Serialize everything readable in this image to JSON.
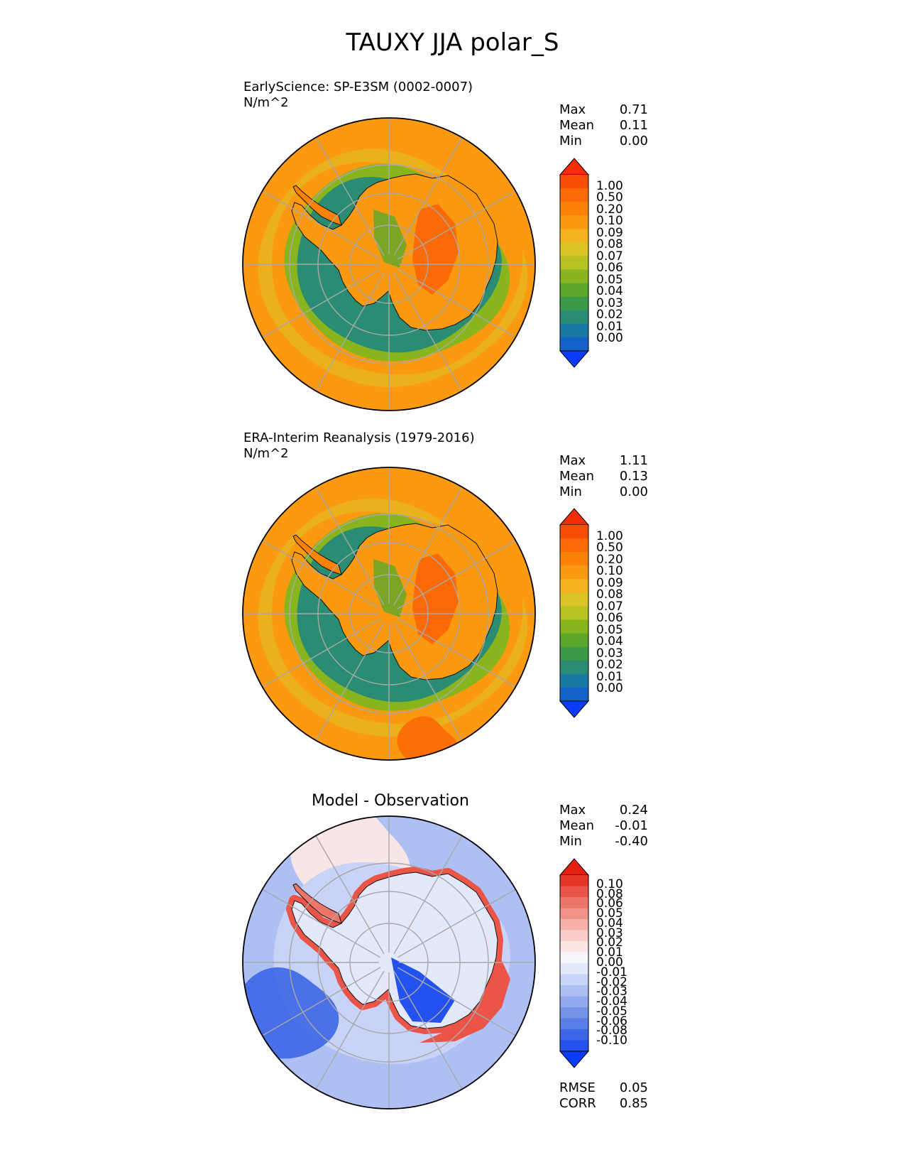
{
  "figure": {
    "title": "TAUXY JJA polar_S"
  },
  "palettes": {
    "field": [
      "#0a3cff",
      "#1562c8",
      "#1a78a6",
      "#2a8c72",
      "#3b9a4a",
      "#5aa72a",
      "#88b51e",
      "#b5c222",
      "#ddc426",
      "#f5b320",
      "#fb9a10",
      "#fc8206",
      "#fb6a04",
      "#f94c04",
      "#f62d06"
    ],
    "diff": [
      "#0a3cff",
      "#2352f0",
      "#3d66e6",
      "#5a7de6",
      "#7693ea",
      "#92a9ee",
      "#adbff3",
      "#c8d3f7",
      "#e3e9fb",
      "#f6f7fb",
      "#fce7e5",
      "#f9cdc8",
      "#f6b1a9",
      "#f29389",
      "#ee7569",
      "#ea5548",
      "#e53526",
      "#e61f10"
    ]
  },
  "panels": [
    {
      "id": "model",
      "label": "EarlyScience: SP-E3SM (0002-0007)",
      "units": "N/m^2",
      "stats": [
        {
          "name": "Max",
          "value": "0.71"
        },
        {
          "name": "Mean",
          "value": "0.11"
        },
        {
          "name": "Min",
          "value": "0.00"
        }
      ]
    },
    {
      "id": "obs",
      "label": "ERA-Interim Reanalysis (1979-2016)",
      "units": "N/m^2",
      "stats": [
        {
          "name": "Max",
          "value": "1.11"
        },
        {
          "name": "Mean",
          "value": "0.13"
        },
        {
          "name": "Min",
          "value": "0.00"
        }
      ]
    },
    {
      "id": "diff",
      "title": "Model - Observation",
      "stats": [
        {
          "name": "Max",
          "value": "0.24"
        },
        {
          "name": "Mean",
          "value": "-0.01"
        },
        {
          "name": "Min",
          "value": "-0.40"
        }
      ],
      "metrics": [
        {
          "name": "RMSE",
          "value": "0.05"
        },
        {
          "name": "CORR",
          "value": "0.85"
        }
      ]
    }
  ],
  "chart_data": [
    {
      "type": "heatmap",
      "projection": "south polar stereographic",
      "field": "TAUXY",
      "season": "JJA",
      "panel": "model",
      "colorbar": {
        "extend": "both",
        "levels": [
          "1.00",
          "0.50",
          "0.20",
          "0.10",
          "0.09",
          "0.08",
          "0.07",
          "0.06",
          "0.05",
          "0.04",
          "0.03",
          "0.02",
          "0.01",
          "0.00"
        ]
      },
      "stats": {
        "max": 0.71,
        "mean": 0.11,
        "min": 0.0
      }
    },
    {
      "type": "heatmap",
      "projection": "south polar stereographic",
      "field": "TAUXY",
      "season": "JJA",
      "panel": "obs",
      "colorbar": {
        "extend": "both",
        "levels": [
          "1.00",
          "0.50",
          "0.20",
          "0.10",
          "0.09",
          "0.08",
          "0.07",
          "0.06",
          "0.05",
          "0.04",
          "0.03",
          "0.02",
          "0.01",
          "0.00"
        ]
      },
      "stats": {
        "max": 1.11,
        "mean": 0.13,
        "min": 0.0
      }
    },
    {
      "type": "heatmap",
      "projection": "south polar stereographic",
      "field": "TAUXY",
      "season": "JJA",
      "panel": "diff",
      "colorbar": {
        "extend": "both",
        "levels": [
          "0.10",
          "0.08",
          "0.06",
          "0.05",
          "0.04",
          "0.03",
          "0.02",
          "0.01",
          "0.00",
          "-0.01",
          "-0.02",
          "-0.03",
          "-0.04",
          "-0.05",
          "-0.06",
          "-0.08",
          "-0.10"
        ]
      },
      "stats": {
        "max": 0.24,
        "mean": -0.01,
        "min": -0.4
      },
      "metrics": {
        "rmse": 0.05,
        "corr": 0.85
      }
    }
  ]
}
